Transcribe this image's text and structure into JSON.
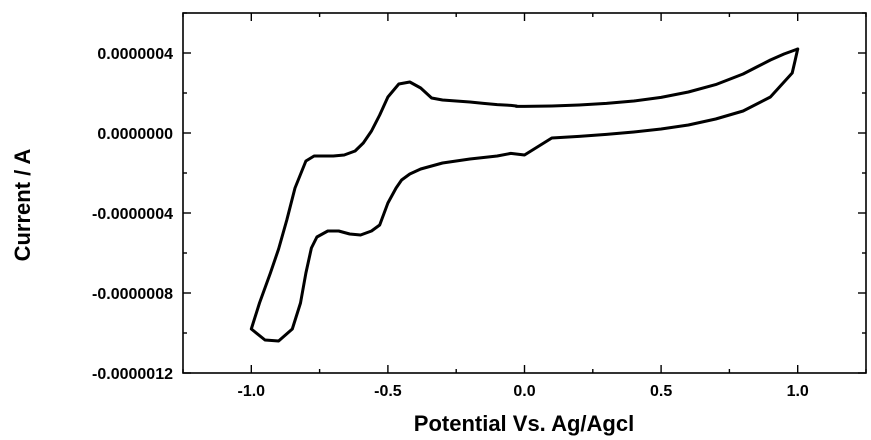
{
  "chart_data": {
    "type": "line",
    "title": "",
    "xlabel": "Potential Vs. Ag/Agcl",
    "ylabel": "Current / A",
    "xlim": [
      -1.25,
      1.25
    ],
    "ylim": [
      -1.2e-06,
      6e-07
    ],
    "x_ticks": [
      -1.0,
      -0.5,
      0.0,
      0.5,
      1.0
    ],
    "x_tick_labels": [
      "-1.0",
      "-0.5",
      "0.0",
      "0.5",
      "1.0"
    ],
    "y_ticks": [
      -1.2e-06,
      -8e-07,
      -4e-07,
      0.0,
      4e-07
    ],
    "y_tick_labels": [
      "-0.0000012",
      "-0.0000008",
      "-0.0000004",
      "0.0000000",
      "0.0000004"
    ],
    "grid": false,
    "legend": "none",
    "series": [
      {
        "color": "#000000",
        "segments": [
          {
            "x": [
              1.0,
              0.99,
              0.98,
              0.9,
              0.8,
              0.7,
              0.6,
              0.5,
              0.4,
              0.3,
              0.2,
              0.1,
              0.0,
              -0.05,
              -0.1,
              -0.2,
              -0.3,
              -0.38,
              -0.42,
              -0.45,
              -0.47,
              -0.5,
              -0.53,
              -0.56,
              -0.6,
              -0.64,
              -0.68,
              -0.72,
              -0.76,
              -0.78,
              -0.8,
              -0.82,
              -0.85,
              -0.9,
              -0.95,
              -1.0,
              -0.97,
              -0.93,
              -0.9,
              -0.87,
              -0.84,
              -0.8,
              -0.77,
              -0.74,
              -0.7,
              -0.66,
              -0.62,
              -0.59,
              -0.56,
              -0.53,
              -0.5,
              -0.46,
              -0.42,
              -0.38,
              -0.34,
              -0.3,
              -0.25,
              -0.2,
              -0.15,
              -0.1,
              -0.05,
              -0.03
            ],
            "y": [
              4.2e-07,
              3.6e-07,
              3e-07,
              1.8e-07,
              1.1e-07,
              7e-08,
              4e-08,
              2e-08,
              5e-09,
              -7e-09,
              -1.7e-08,
              -2.5e-08,
              -1.1e-07,
              -1.02e-07,
              -1.15e-07,
              -1.3e-07,
              -1.5e-07,
              -1.8e-07,
              -2.05e-07,
              -2.35e-07,
              -2.75e-07,
              -3.5e-07,
              -4.6e-07,
              -4.9e-07,
              -5.1e-07,
              -5.05e-07,
              -4.9e-07,
              -4.9e-07,
              -5.2e-07,
              -5.75e-07,
              -7e-07,
              -8.5e-07,
              -9.8e-07,
              -1.04e-06,
              -1.035e-06,
              -9.8e-07,
              -8.5e-07,
              -7e-07,
              -5.8e-07,
              -4.35e-07,
              -2.75e-07,
              -1.4e-07,
              -1.15e-07,
              -1.15e-07,
              -1.15e-07,
              -1.1e-07,
              -9e-08,
              -5e-08,
              1e-08,
              9e-08,
              1.8e-07,
              2.45e-07,
              2.55e-07,
              2.25e-07,
              1.75e-07,
              1.65e-07,
              1.6e-07,
              1.55e-07,
              1.48e-07,
              1.42e-07,
              1.38e-07,
              1.35e-07
            ]
          },
          {
            "x": [
              -0.03,
              0.0,
              0.1,
              0.2,
              0.3,
              0.4,
              0.5,
              0.6,
              0.7,
              0.8,
              0.85,
              0.9,
              0.95,
              1.0
            ],
            "y": [
              1.33e-07,
              1.33e-07,
              1.35e-07,
              1.4e-07,
              1.48e-07,
              1.6e-07,
              1.78e-07,
              2.05e-07,
              2.42e-07,
              2.95e-07,
              3.3e-07,
              3.65e-07,
              3.95e-07,
              4.2e-07
            ]
          }
        ]
      }
    ]
  }
}
